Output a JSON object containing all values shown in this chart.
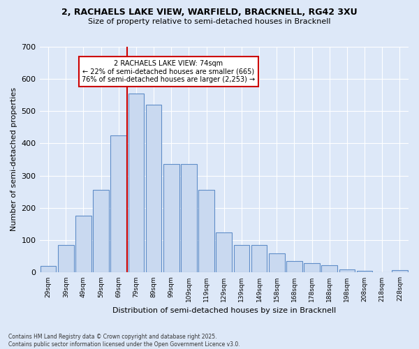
{
  "title_line1": "2, RACHAELS LAKE VIEW, WARFIELD, BRACKNELL, RG42 3XU",
  "title_line2": "Size of property relative to semi-detached houses in Bracknell",
  "xlabel": "Distribution of semi-detached houses by size in Bracknell",
  "ylabel": "Number of semi-detached properties",
  "categories": [
    "29sqm",
    "39sqm",
    "49sqm",
    "59sqm",
    "69sqm",
    "79sqm",
    "89sqm",
    "99sqm",
    "109sqm",
    "119sqm",
    "129sqm",
    "139sqm",
    "149sqm",
    "158sqm",
    "168sqm",
    "178sqm",
    "188sqm",
    "198sqm",
    "208sqm",
    "218sqm",
    "228sqm"
  ],
  "values": [
    20,
    85,
    175,
    255,
    425,
    555,
    520,
    335,
    335,
    255,
    125,
    85,
    85,
    60,
    35,
    28,
    22,
    10,
    5,
    2,
    7
  ],
  "bar_color": "#c9d9f0",
  "bar_edge_color": "#5f8dc8",
  "annotation_text_line1": "2 RACHAELS LAKE VIEW: 74sqm",
  "annotation_text_line2": "← 22% of semi-detached houses are smaller (665)",
  "annotation_text_line3": "76% of semi-detached houses are larger (2,253) →",
  "annotation_box_facecolor": "white",
  "annotation_box_edgecolor": "#cc0000",
  "vline_x": 4.5,
  "vline_color": "#cc0000",
  "background_color": "#dde8f8",
  "grid_color": "white",
  "ylim": [
    0,
    700
  ],
  "yticks": [
    0,
    100,
    200,
    300,
    400,
    500,
    600,
    700
  ],
  "footer_text": "Contains HM Land Registry data © Crown copyright and database right 2025.\nContains public sector information licensed under the Open Government Licence v3.0."
}
